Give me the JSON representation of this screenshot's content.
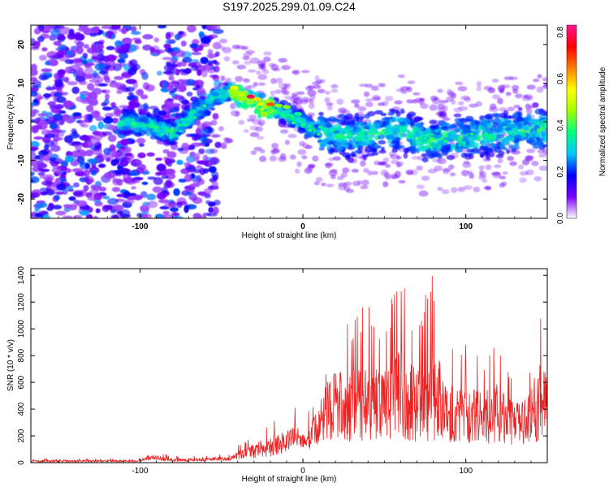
{
  "figure": {
    "title": "S197.2025.299.01.09.C24"
  },
  "chart_data": [
    {
      "type": "heatmap",
      "title": "S197.2025.299.01.09.C24",
      "xlabel": "Height of straight line (km)",
      "ylabel": "Frequency (Hz)",
      "xlim": [
        -167,
        150
      ],
      "ylim": [
        -25,
        25
      ],
      "x_ticks": [
        -100,
        0,
        100
      ],
      "y_ticks": [
        -20,
        -10,
        0,
        10,
        20
      ],
      "colorbar": {
        "label": "Normalized spectral amplitude",
        "range": [
          0.0,
          0.83
        ],
        "ticks": [
          "0.0",
          "0.2",
          "0.4",
          "0.6",
          "0.8"
        ],
        "tick_values": [
          0.0,
          0.2,
          0.4,
          0.6,
          0.8
        ],
        "colormap": [
          "#ffffff",
          "#7a00ff",
          "#0000ff",
          "#00c8ff",
          "#00ff7f",
          "#a0ff00",
          "#ffff00",
          "#ff8000",
          "#ff0000",
          "#ff1493"
        ]
      },
      "ridge": {
        "description_points_x": [
          -110,
          -95,
          -80,
          -65,
          -55,
          -45,
          -35,
          -25,
          -15,
          -5,
          5,
          15,
          30,
          45,
          60,
          75,
          90,
          105,
          120,
          140
        ],
        "description_points_y": [
          0,
          -1,
          -3,
          3,
          6,
          8,
          6,
          4,
          3,
          1,
          -2,
          -3,
          -4,
          -3,
          -2,
          -5,
          -4,
          -4,
          -3,
          -2
        ],
        "peak_amplitude": 0.83
      }
    },
    {
      "type": "line",
      "xlabel": "Height of straight line (km)",
      "ylabel": "SNR (10 * v/v)",
      "xlim": [
        -167,
        150
      ],
      "ylim": [
        0,
        1450
      ],
      "x_ticks": [
        -100,
        0,
        100
      ],
      "y_ticks": [
        0,
        200,
        400,
        600,
        800,
        1000,
        1200,
        1400
      ],
      "series": [
        {
          "name": "SNR",
          "color": "#ee2222",
          "envelope_x": [
            -167,
            -100,
            -95,
            -90,
            -80,
            -60,
            -50,
            -45,
            -40,
            -30,
            -20,
            -15,
            -10,
            -5,
            0,
            5,
            10,
            15,
            20,
            25,
            30,
            40,
            50,
            60,
            70,
            80,
            90,
            100,
            110,
            120,
            130,
            140,
            145,
            150
          ],
          "envelope_max": [
            30,
            30,
            90,
            80,
            50,
            50,
            70,
            60,
            130,
            220,
            300,
            330,
            380,
            440,
            280,
            450,
            600,
            1100,
            1150,
            1000,
            1100,
            1200,
            1050,
            1450,
            1050,
            1450,
            900,
            900,
            800,
            950,
            650,
            800,
            1270,
            1000
          ],
          "envelope_min": [
            0,
            5,
            10,
            10,
            5,
            5,
            10,
            10,
            15,
            20,
            30,
            40,
            60,
            80,
            100,
            80,
            100,
            120,
            100,
            100,
            100,
            80,
            100,
            90,
            100,
            80,
            100,
            100,
            90,
            100,
            100,
            100,
            90,
            200
          ]
        }
      ]
    }
  ]
}
